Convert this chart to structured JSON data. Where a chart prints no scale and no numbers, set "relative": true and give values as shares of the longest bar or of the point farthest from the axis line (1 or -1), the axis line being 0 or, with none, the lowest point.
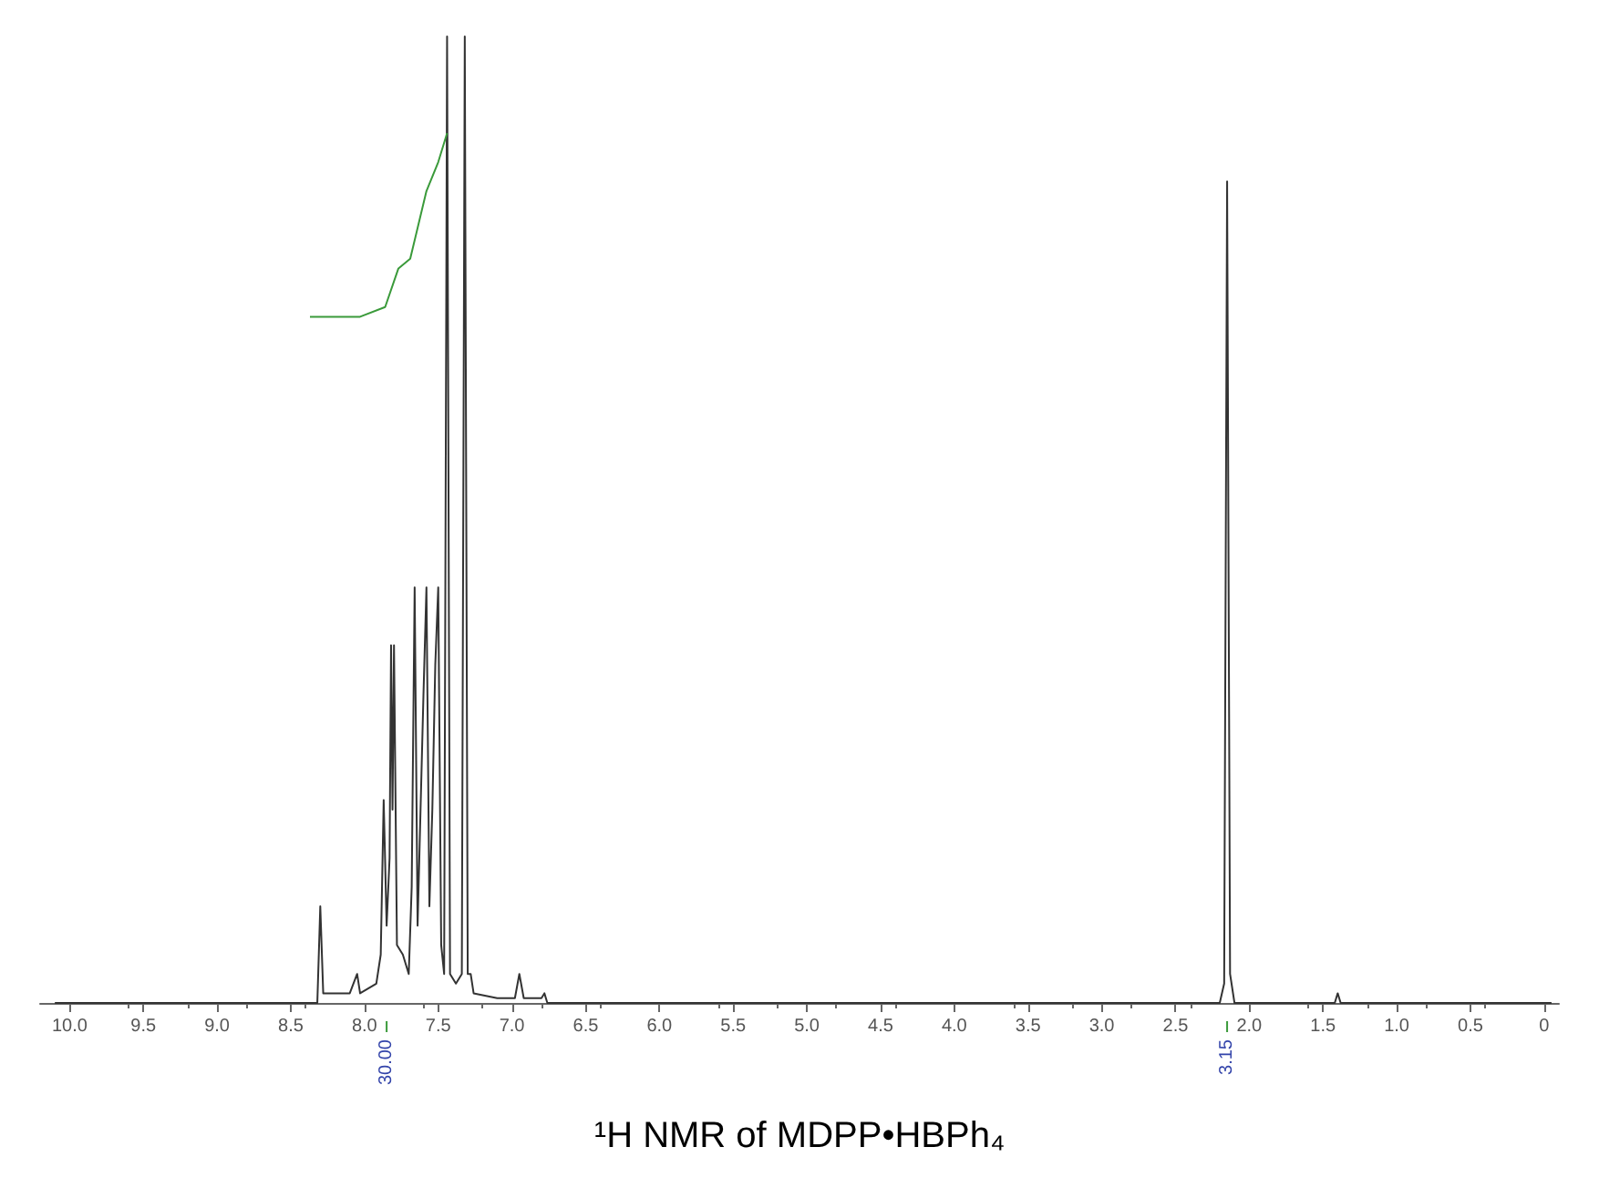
{
  "chart_data": {
    "type": "line",
    "title": "¹H NMR of MDPP•HBPh₄",
    "relative": true,
    "marker": "none",
    "line_style": "solid",
    "tick_labels": "x",
    "xlim": [
      10.2,
      -0.1
    ],
    "xticks": [
      {
        "value": 10,
        "label": "10.0"
      },
      9.5,
      {
        "value": 9,
        "label": "9.0"
      },
      8.5,
      {
        "value": 8,
        "label": "8.0"
      },
      7.5,
      {
        "value": 7,
        "label": "7.0"
      },
      6.5,
      {
        "value": 6,
        "label": "6.0"
      },
      5.5,
      {
        "value": 5,
        "label": "5.0"
      },
      4.5,
      {
        "value": 4,
        "label": "4.0"
      },
      3.5,
      {
        "value": 3,
        "label": "3.0"
      },
      2.5,
      {
        "value": 2,
        "label": "2.0"
      },
      1.5,
      {
        "value": 1,
        "label": "1.0"
      },
      0.5,
      {
        "value": 0,
        "label": "0"
      }
    ],
    "series": [
      {
        "color": "#333333",
        "x": [
          10.1,
          8.32,
          8.3,
          8.28,
          8.1,
          8.05,
          8.03,
          7.92,
          7.89,
          7.87,
          7.85,
          7.83,
          7.82,
          7.81,
          7.8,
          7.78,
          7.74,
          7.7,
          7.68,
          7.66,
          7.64,
          7.62,
          7.6,
          7.58,
          7.56,
          7.54,
          7.52,
          7.5,
          7.48,
          7.46,
          7.44,
          7.42,
          7.38,
          7.34,
          7.32,
          7.3,
          7.28,
          7.26,
          7.1,
          6.98,
          6.95,
          6.92,
          6.8,
          6.78,
          6.76,
          2.2,
          2.17,
          2.15,
          2.13,
          2.1,
          1.42,
          1.4,
          1.38,
          -0.05
        ],
        "values": [
          0,
          0,
          0.1,
          0.01,
          0.01,
          0.03,
          0.01,
          0.02,
          0.05,
          0.21,
          0.08,
          0.15,
          0.37,
          0.2,
          0.37,
          0.06,
          0.05,
          0.03,
          0.12,
          0.43,
          0.08,
          0.2,
          0.32,
          0.43,
          0.1,
          0.2,
          0.35,
          0.43,
          0.06,
          0.03,
          1,
          0.03,
          0.02,
          0.03,
          1,
          0.03,
          0.03,
          0.01,
          0.005,
          0.005,
          0.03,
          0.005,
          0.005,
          0.01,
          0,
          0,
          0.02,
          0.85,
          0.03,
          0,
          0,
          0.01,
          0,
          0
        ]
      },
      {
        "color": "#3a9a3a",
        "x": [
          8.37,
          8.03,
          7.86,
          7.77,
          7.69,
          7.58,
          7.5,
          7.44
        ],
        "values": [
          0.71,
          0.71,
          0.72,
          0.76,
          0.77,
          0.84,
          0.87,
          0.9
        ]
      }
    ],
    "annotations": [
      {
        "text": "30.00",
        "x": 7.85
      },
      {
        "text": "3.15",
        "x": 2.15
      }
    ]
  }
}
